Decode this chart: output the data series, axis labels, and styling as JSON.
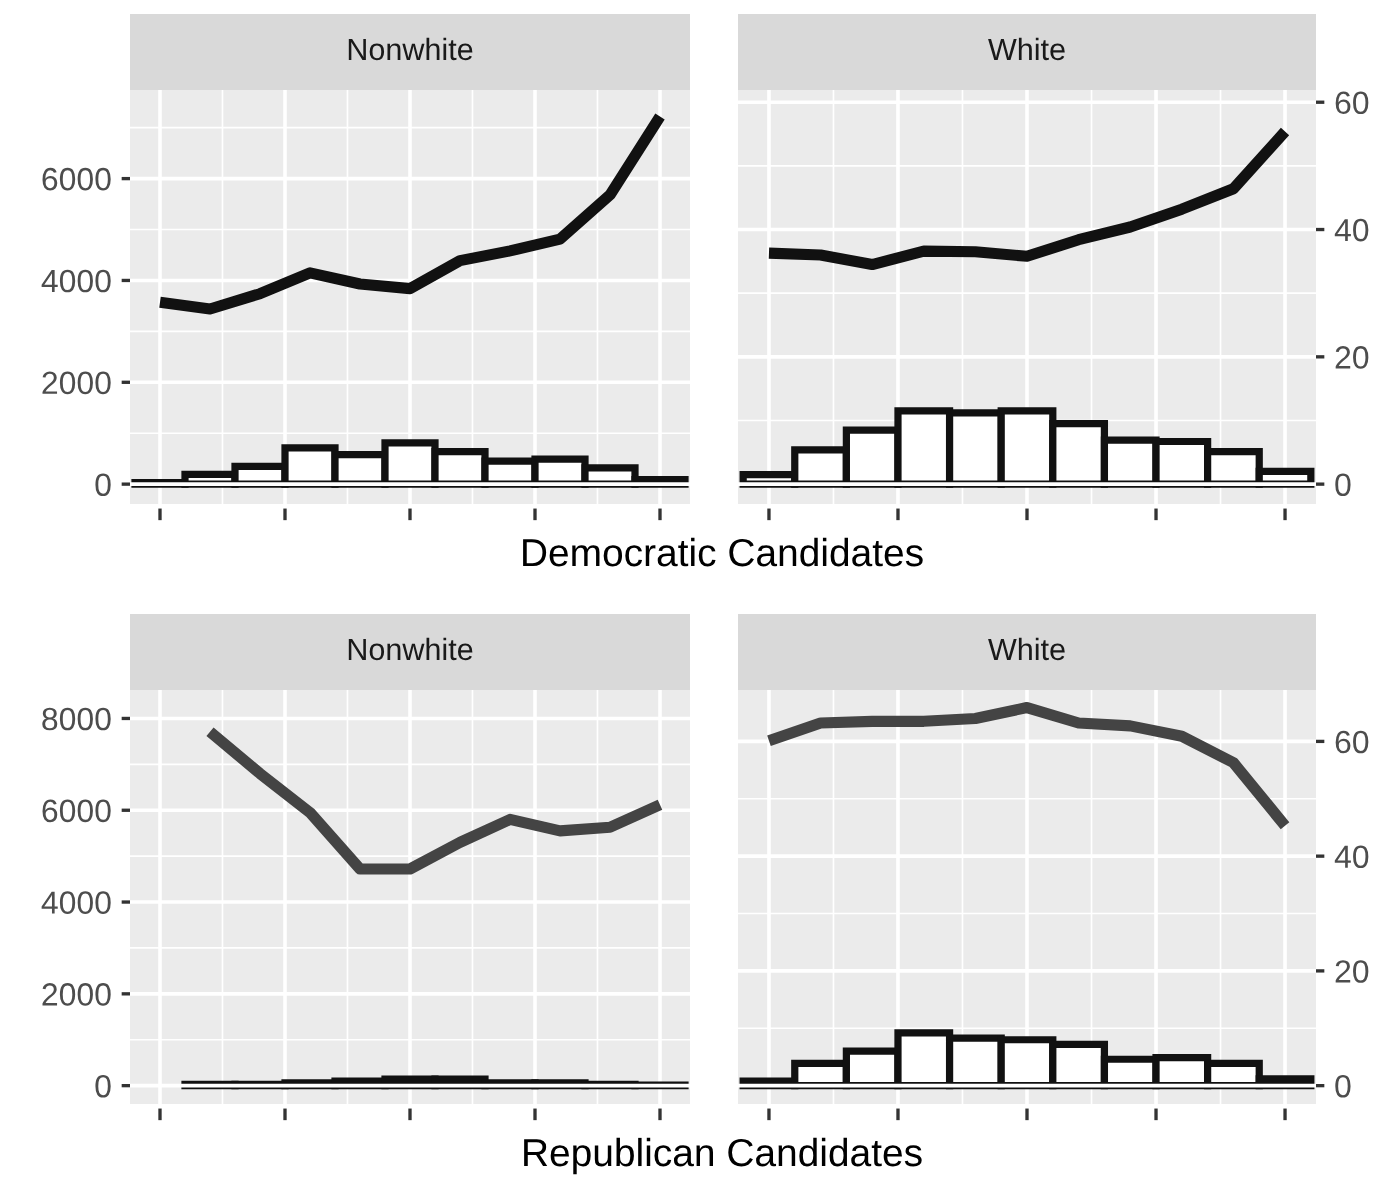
{
  "chart_data": [
    {
      "type": "bar",
      "title": "Nonwhite",
      "xlabel": "Democratic Candidates",
      "categories": [
        null,
        null,
        null,
        null,
        null,
        null,
        null,
        null,
        null,
        null,
        null
      ],
      "ylim": [
        -390,
        7740
      ],
      "yticks": [
        0,
        2000,
        4000,
        6000
      ],
      "grid": true,
      "series": [
        {
          "color": "#ffffff",
          "values": [
            30,
            190,
            350,
            710,
            580,
            810,
            640,
            450,
            490,
            320,
            90
          ]
        }
      ]
    },
    {
      "type": "line",
      "categories": [
        null,
        null,
        null,
        null,
        null,
        null,
        null,
        null,
        null,
        null,
        null
      ],
      "ylim": [
        -390,
        7740
      ],
      "yticks": [
        0,
        2000,
        4000,
        6000
      ],
      "tick_labels": false,
      "grid": true,
      "series": [
        {
          "color": "#111111",
          "values": [
            3570,
            3440,
            3740,
            4150,
            3930,
            3840,
            4390,
            4580,
            4810,
            5680,
            7220
          ]
        }
      ]
    },
    {
      "type": "bar",
      "title": "White",
      "categories": [
        null,
        null,
        null,
        null,
        null,
        null,
        null,
        null,
        null,
        null,
        null
      ],
      "ylim": [
        -3.12,
        61.92
      ],
      "yticks": [
        0,
        20,
        40,
        60
      ],
      "grid": true,
      "series": [
        {
          "color": "#ffffff",
          "values": [
            1.5,
            5.4,
            8.5,
            11.5,
            11.2,
            11.5,
            9.5,
            6.9,
            6.7,
            5.1,
            2.0
          ]
        }
      ]
    },
    {
      "type": "line",
      "categories": [
        null,
        null,
        null,
        null,
        null,
        null,
        null,
        null,
        null,
        null,
        null
      ],
      "ylim": [
        -3.12,
        61.92
      ],
      "yticks": [
        0,
        20,
        40,
        60
      ],
      "tick_labels": false,
      "grid": true,
      "series": [
        {
          "color": "#111111",
          "values": [
            36.3,
            36.0,
            34.5,
            36.6,
            36.5,
            35.8,
            38.4,
            40.4,
            43.2,
            46.4,
            55.4
          ]
        }
      ]
    },
    {
      "type": "bar",
      "title": "Nonwhite",
      "xlabel": "Republican Candidates",
      "categories": [
        null,
        null,
        null,
        null,
        null,
        null,
        null,
        null,
        null,
        null,
        null
      ],
      "ylim": [
        -400,
        8620
      ],
      "yticks": [
        0,
        2000,
        4000,
        6000,
        8000
      ],
      "grid": true,
      "series": [
        {
          "color": "#ffffff",
          "values": [
            null,
            30,
            30,
            60,
            100,
            140,
            140,
            60,
            60,
            30,
            10
          ]
        }
      ]
    },
    {
      "type": "line",
      "categories": [
        null,
        null,
        null,
        null,
        null,
        null,
        null,
        null,
        null,
        null,
        null
      ],
      "ylim": [
        -400,
        8620
      ],
      "yticks": [
        0,
        2000,
        4000,
        6000,
        8000
      ],
      "tick_labels": false,
      "grid": true,
      "series": [
        {
          "color": "#444444",
          "values": [
            null,
            7710,
            6800,
            5950,
            4720,
            4720,
            5300,
            5800,
            5550,
            5630,
            6120
          ]
        }
      ]
    },
    {
      "type": "bar",
      "title": "White",
      "categories": [
        null,
        null,
        null,
        null,
        null,
        null,
        null,
        null,
        null,
        null,
        null
      ],
      "ylim": [
        -3.2,
        68.96
      ],
      "yticks": [
        0,
        20,
        40,
        60
      ],
      "grid": true,
      "series": [
        {
          "color": "#ffffff",
          "values": [
            0.8,
            3.9,
            6.0,
            9.2,
            8.3,
            8.0,
            7.2,
            4.6,
            4.9,
            3.9,
            1.2
          ]
        }
      ]
    },
    {
      "type": "line",
      "categories": [
        null,
        null,
        null,
        null,
        null,
        null,
        null,
        null,
        null,
        null,
        null
      ],
      "ylim": [
        -3.2,
        68.96
      ],
      "yticks": [
        0,
        20,
        40,
        60
      ],
      "tick_labels": false,
      "grid": true,
      "series": [
        {
          "color": "#444444",
          "values": [
            60.1,
            63.2,
            63.5,
            63.5,
            64.0,
            65.9,
            63.2,
            62.7,
            60.9,
            56.3,
            45.3
          ]
        }
      ]
    }
  ]
}
